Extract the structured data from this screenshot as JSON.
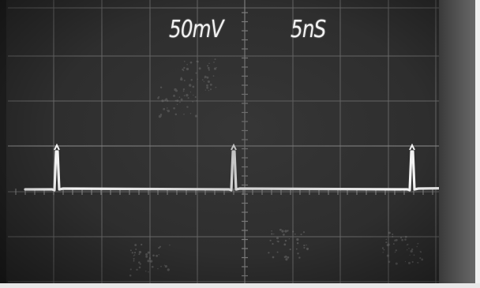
{
  "readout": {
    "volts_per_div": "50mV",
    "time_per_div": "5nS"
  },
  "trace": {
    "color": "#f4f4f4",
    "pulse_count": 3
  },
  "screen": {
    "background": "#2e2e2e",
    "graticule_color": "#7a7a7a"
  }
}
